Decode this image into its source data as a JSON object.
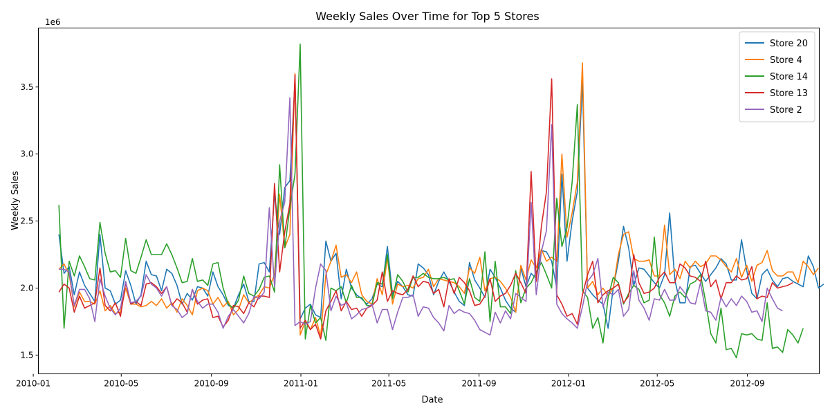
{
  "chart_data": {
    "type": "line",
    "title": "Weekly Sales Over Time for Top 5 Stores",
    "xlabel": "Date",
    "ylabel": "Weekly Sales",
    "y_offset_label": "1e6",
    "x_start": "2010-02-05",
    "x_step_days": 7,
    "xlim": [
      "2010-01-08",
      "2012-12-08"
    ],
    "ylim": [
      1360000,
      3940000
    ],
    "x_ticks": [
      {
        "date": "2010-01-01",
        "label": "2010-01"
      },
      {
        "date": "2010-05-01",
        "label": "2010-05"
      },
      {
        "date": "2010-09-01",
        "label": "2010-09"
      },
      {
        "date": "2011-01-01",
        "label": "2011-01"
      },
      {
        "date": "2011-05-01",
        "label": "2011-05"
      },
      {
        "date": "2011-09-01",
        "label": "2011-09"
      },
      {
        "date": "2012-01-01",
        "label": "2012-01"
      },
      {
        "date": "2012-05-01",
        "label": "2012-05"
      },
      {
        "date": "2012-09-01",
        "label": "2012-09"
      }
    ],
    "y_ticks": [
      {
        "value": 1500000,
        "label": "1.5"
      },
      {
        "value": 2000000,
        "label": "2.0"
      },
      {
        "value": 2500000,
        "label": "2.5"
      },
      {
        "value": 3000000,
        "label": "3.0"
      },
      {
        "value": 3500000,
        "label": "3.5"
      }
    ],
    "legend_position": "top-right",
    "grid": false,
    "series": [
      {
        "name": "Store 20",
        "color": "#1f77b4",
        "values": [
          2400000,
          2110000,
          2160000,
          1950000,
          2120000,
          2020000,
          1960000,
          1900000,
          2400000,
          2000000,
          1980000,
          1880000,
          1910000,
          2130000,
          2020000,
          1880000,
          1950000,
          2200000,
          2100000,
          2090000,
          1980000,
          2140000,
          2110000,
          2020000,
          1880000,
          1960000,
          1910000,
          2010000,
          2000000,
          1940000,
          2120000,
          2010000,
          1950000,
          1870000,
          1850000,
          1950000,
          2030000,
          1900000,
          1900000,
          2180000,
          2190000,
          2120000,
          2700000,
          2400000,
          2750000,
          2800000,
          3550000,
          1770000,
          1850000,
          1880000,
          1800000,
          1780000,
          2350000,
          2200000,
          2260000,
          1920000,
          2140000,
          2000000,
          1950000,
          1920000,
          1880000,
          1920000,
          2030000,
          2010000,
          2310000,
          1950000,
          2050000,
          2010000,
          1950000,
          1940000,
          2180000,
          2150000,
          2100000,
          1950000,
          2050000,
          2120000,
          2050000,
          1970000,
          1900000,
          1870000,
          2190000,
          2060000,
          2000000,
          1930000,
          2140000,
          2080000,
          2000000,
          1910000,
          1850000,
          1820000,
          2150000,
          2010000,
          2110000,
          2070000,
          2280000,
          2270000,
          2200000,
          2000000,
          2850000,
          2200000,
          2500000,
          2720000,
          3550000,
          2000000,
          1950000,
          1910000,
          1880000,
          1700000,
          2000000,
          2200000,
          2460000,
          2300000,
          2020000,
          2150000,
          2140000,
          2090000,
          2040000,
          2000000,
          2100000,
          2560000,
          2060000,
          1890000,
          1890000,
          2160000,
          2170000,
          2110000,
          2050000,
          2100000,
          2150000,
          2220000,
          2180000,
          2060000,
          2060000,
          2360000,
          2130000,
          1960000,
          1920000,
          2100000,
          2140000,
          2060000,
          2010000,
          2070000,
          2080000,
          2050000,
          2030000,
          2010000,
          2240000,
          2160000,
          2000000,
          2030000
        ]
      },
      {
        "name": "Store 4",
        "color": "#ff7f0e",
        "values": [
          2140000,
          2180000,
          2100000,
          1860000,
          1970000,
          1900000,
          1900000,
          1880000,
          1980000,
          1830000,
          1870000,
          1810000,
          1820000,
          2000000,
          1880000,
          1880000,
          1860000,
          1870000,
          1900000,
          1870000,
          1920000,
          1850000,
          1890000,
          1820000,
          1920000,
          1870000,
          1800000,
          1980000,
          2000000,
          1980000,
          1880000,
          1930000,
          1860000,
          1900000,
          1800000,
          1840000,
          1950000,
          1890000,
          1920000,
          1950000,
          2010000,
          2000000,
          2100000,
          2700000,
          2300000,
          2400000,
          3600000,
          1650000,
          1750000,
          1690000,
          1780000,
          1640000,
          2100000,
          2200000,
          2320000,
          2080000,
          2100000,
          2040000,
          2120000,
          1950000,
          1900000,
          1880000,
          2070000,
          1950000,
          2230000,
          1880000,
          2030000,
          2010000,
          2020000,
          2000000,
          2070000,
          2080000,
          2140000,
          2010000,
          2070000,
          2060000,
          2050000,
          2040000,
          2010000,
          1960000,
          2150000,
          2110000,
          2230000,
          1980000,
          2070000,
          2080000,
          2050000,
          2000000,
          1930000,
          1820000,
          2170000,
          2060000,
          2210000,
          2150000,
          2290000,
          2200000,
          2230000,
          2200000,
          3000000,
          2380000,
          2560000,
          2790000,
          3680000,
          2000000,
          2050000,
          1950000,
          2000000,
          1940000,
          2000000,
          2250000,
          2400000,
          2420000,
          2220000,
          2200000,
          2200000,
          2210000,
          2090000,
          2090000,
          2470000,
          2100000,
          2140000,
          2070000,
          2200000,
          2150000,
          2200000,
          2160000,
          2180000,
          2240000,
          2240000,
          2210000,
          2160000,
          2120000,
          2220000,
          2080000,
          2170000,
          2050000,
          2170000,
          2190000,
          2280000,
          2130000,
          2090000,
          2090000,
          2120000,
          2120000,
          2040000,
          2200000,
          2160000,
          2100000,
          2150000
        ]
      },
      {
        "name": "Store 14",
        "color": "#2ca02c",
        "values": [
          2620000,
          1700000,
          2200000,
          2090000,
          2240000,
          2160000,
          2070000,
          2060000,
          2490000,
          2260000,
          2120000,
          2130000,
          2080000,
          2370000,
          2130000,
          2110000,
          2230000,
          2360000,
          2250000,
          2250000,
          2250000,
          2330000,
          2250000,
          2150000,
          2040000,
          2050000,
          2220000,
          2050000,
          2060000,
          2020000,
          2180000,
          2190000,
          2000000,
          1880000,
          1850000,
          1910000,
          2090000,
          1960000,
          1940000,
          1990000,
          2080000,
          2090000,
          1970000,
          2920000,
          2300000,
          2600000,
          2850000,
          3820000,
          1620000,
          1870000,
          1740000,
          1780000,
          1610000,
          2000000,
          1980000,
          2010000,
          1890000,
          2020000,
          1930000,
          1930000,
          1870000,
          1870000,
          2040000,
          2030000,
          2250000,
          1920000,
          2100000,
          2050000,
          1970000,
          2080000,
          2080000,
          2110000,
          2080000,
          2070000,
          2070000,
          2080000,
          2060000,
          2070000,
          1980000,
          1880000,
          2070000,
          1930000,
          1900000,
          2270000,
          1750000,
          2200000,
          1860000,
          1860000,
          1810000,
          2130000,
          1890000,
          2000000,
          2040000,
          2120000,
          2190000,
          2100000,
          2000000,
          2670000,
          2310000,
          2450000,
          2790000,
          3370000,
          1980000,
          1930000,
          1700000,
          1780000,
          1590000,
          1930000,
          2080000,
          2040000,
          1880000,
          1960000,
          2020000,
          1990000,
          1890000,
          1910000,
          2380000,
          1950000,
          1890000,
          1790000,
          1940000,
          1970000,
          1930000,
          2030000,
          2050000,
          2100000,
          1900000,
          1660000,
          1590000,
          1850000,
          1540000,
          1550000,
          1480000,
          1660000,
          1650000,
          1660000,
          1620000,
          1610000,
          1890000,
          1550000,
          1560000,
          1520000,
          1690000,
          1650000,
          1590000,
          1700000
        ]
      },
      {
        "name": "Store 13",
        "color": "#d62728",
        "values": [
          1970000,
          2030000,
          2000000,
          1820000,
          1940000,
          1850000,
          1870000,
          1890000,
          2150000,
          1870000,
          1830000,
          1890000,
          1790000,
          2040000,
          1880000,
          1900000,
          1870000,
          2030000,
          2040000,
          2010000,
          1960000,
          2010000,
          1870000,
          1920000,
          1890000,
          1820000,
          1990000,
          1880000,
          1910000,
          1920000,
          1780000,
          1790000,
          1710000,
          1760000,
          1870000,
          1860000,
          1810000,
          1890000,
          1860000,
          1940000,
          1940000,
          1930000,
          2780000,
          2120000,
          2420000,
          2630000,
          3590000,
          1700000,
          1760000,
          1690000,
          1730000,
          1620000,
          1830000,
          1900000,
          1980000,
          1830000,
          1900000,
          1840000,
          1850000,
          1790000,
          1850000,
          1870000,
          1910000,
          2120000,
          1900000,
          1980000,
          1960000,
          1950000,
          1990000,
          2090000,
          2010000,
          2050000,
          2040000,
          1960000,
          1990000,
          1860000,
          2070000,
          1960000,
          2080000,
          2040000,
          1980000,
          1870000,
          1880000,
          1940000,
          2070000,
          1900000,
          1940000,
          1960000,
          2020000,
          2110000,
          2040000,
          1960000,
          2870000,
          2050000,
          2460000,
          2720000,
          3560000,
          1950000,
          1880000,
          1790000,
          1810000,
          1730000,
          1950000,
          2100000,
          2200000,
          1890000,
          1950000,
          1980000,
          2000000,
          2030000,
          1890000,
          1940000,
          2250000,
          2040000,
          1960000,
          1970000,
          2000000,
          2080000,
          2120000,
          2040000,
          2040000,
          2180000,
          2150000,
          2090000,
          2080000,
          2050000,
          2200000,
          2010000,
          2060000,
          1920000,
          2040000,
          2040000,
          2090000,
          2060000,
          2070000,
          2160000,
          1920000,
          1940000,
          1930000,
          2040000,
          2000000,
          2010000,
          2020000,
          2040000
        ]
      },
      {
        "name": "Store 2",
        "color": "#9467bd",
        "values": [
          2140000,
          2140000,
          2120000,
          1870000,
          1990000,
          1990000,
          1920000,
          1750000,
          2070000,
          1940000,
          1850000,
          1800000,
          1850000,
          2050000,
          1890000,
          1900000,
          1940000,
          2100000,
          2030000,
          2000000,
          1940000,
          2010000,
          1870000,
          1840000,
          1780000,
          1810000,
          1990000,
          1900000,
          1850000,
          1880000,
          1880000,
          1820000,
          1700000,
          1790000,
          1840000,
          1790000,
          1740000,
          1810000,
          1940000,
          1920000,
          1970000,
          2600000,
          2010000,
          2500000,
          2640000,
          3420000,
          1720000,
          1750000,
          1730000,
          1750000,
          2000000,
          2180000,
          2130000,
          1830000,
          1940000,
          1870000,
          1890000,
          1770000,
          1800000,
          1840000,
          1850000,
          1880000,
          1740000,
          1840000,
          1840000,
          1690000,
          1820000,
          1930000,
          1930000,
          1950000,
          1790000,
          1860000,
          1850000,
          1780000,
          1740000,
          1680000,
          1870000,
          1810000,
          1840000,
          1820000,
          1810000,
          1760000,
          1690000,
          1670000,
          1650000,
          1820000,
          1740000,
          1830000,
          1770000,
          1960000,
          1930000,
          1900000,
          2640000,
          1950000,
          2270000,
          2430000,
          3220000,
          1880000,
          1810000,
          1770000,
          1740000,
          1700000,
          1860000,
          2050000,
          2100000,
          2220000,
          1860000,
          1970000,
          1950000,
          1990000,
          1790000,
          1840000,
          2130000,
          1910000,
          1850000,
          1760000,
          1920000,
          1910000,
          1990000,
          1910000,
          1910000,
          2010000,
          1960000,
          1890000,
          1880000,
          2040000,
          1830000,
          1820000,
          1760000,
          1930000,
          1860000,
          1920000,
          1870000,
          1940000,
          1900000,
          1820000,
          1830000,
          1750000,
          2000000,
          1920000,
          1850000,
          1830000
        ]
      }
    ]
  }
}
